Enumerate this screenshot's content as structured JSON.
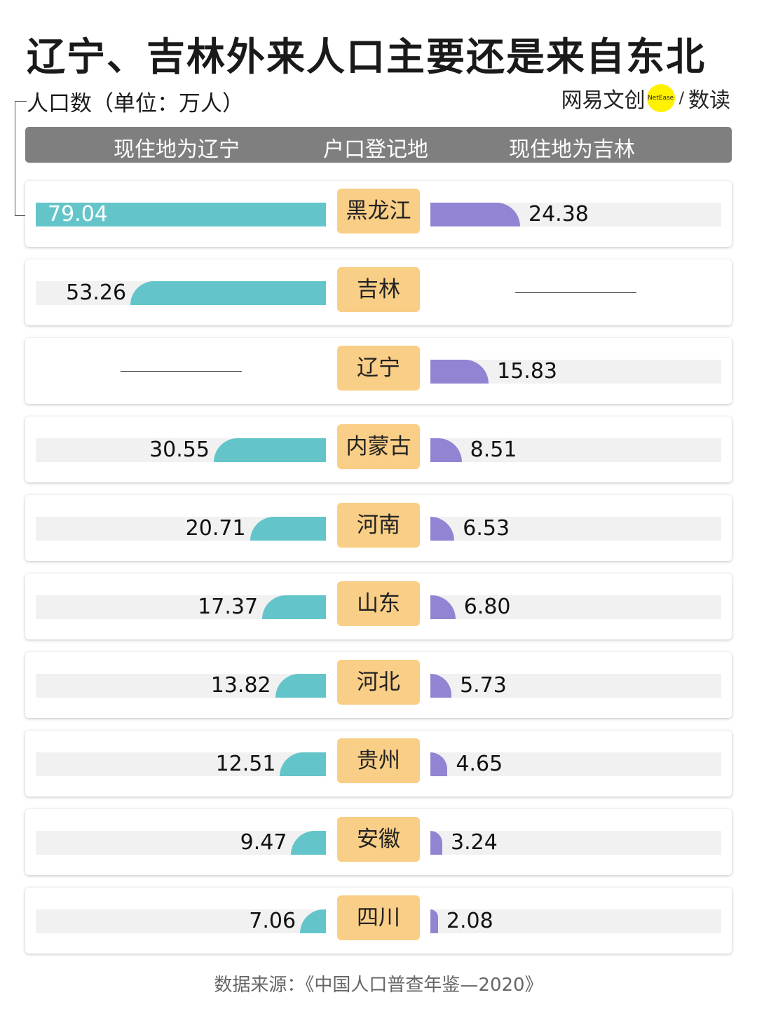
{
  "title": "辽宁、吉林外来人口主要还是来自东北",
  "unit_label": "人口数（单位：万人）",
  "logo": {
    "brand": "网易文创",
    "badge": "NetEase",
    "section": "数读"
  },
  "header": {
    "left": "现住地为辽宁",
    "center": "户口登记地",
    "right": "现住地为吉林"
  },
  "source": "数据来源：《中国人口普查年鉴—2020》",
  "colors": {
    "liaoning": "#63c5c9",
    "jilin": "#9384d3",
    "place_box": "#f9ce86",
    "header": "#7f7f7f",
    "track": "#f1f1f1"
  },
  "chart_data": {
    "type": "bar",
    "layout": "butterfly",
    "categories": [
      "黑龙江",
      "吉林",
      "辽宁",
      "内蒙古",
      "河南",
      "山东",
      "河北",
      "贵州",
      "安徽",
      "四川"
    ],
    "series": [
      {
        "name": "现住地为辽宁",
        "values": [
          79.04,
          53.26,
          null,
          30.55,
          20.71,
          17.37,
          13.82,
          12.51,
          9.47,
          7.06
        ]
      },
      {
        "name": "现住地为吉林",
        "values": [
          24.38,
          null,
          15.83,
          8.51,
          6.53,
          6.8,
          5.73,
          4.65,
          3.24,
          2.08
        ]
      }
    ],
    "labels_left": [
      "79.04",
      "53.26",
      "",
      "30.55",
      "20.71",
      "17.37",
      "13.82",
      "12.51",
      "9.47",
      "7.06"
    ],
    "labels_right": [
      "24.38",
      "",
      "15.83",
      "8.51",
      "6.53",
      "6.80",
      "5.73",
      "4.65",
      "3.24",
      "2.08"
    ],
    "xlim": [
      0,
      79.04
    ],
    "grid": false
  }
}
